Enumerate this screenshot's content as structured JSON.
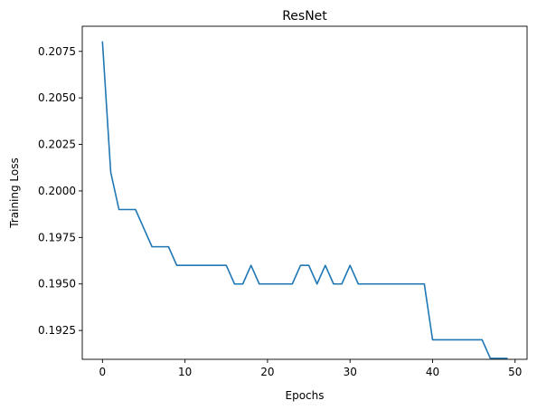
{
  "chart_data": {
    "type": "line",
    "title": "ResNet",
    "xlabel": "Epochs",
    "ylabel": "Training Loss",
    "xlim": [
      -2.45,
      51.45
    ],
    "ylim": [
      0.19095,
      0.20885
    ],
    "xticks": [
      0,
      10,
      20,
      30,
      40,
      50
    ],
    "xtick_labels": [
      "0",
      "10",
      "20",
      "30",
      "40",
      "50"
    ],
    "yticks": [
      0.1925,
      0.195,
      0.1975,
      0.2,
      0.2025,
      0.205,
      0.2075
    ],
    "ytick_labels": [
      "0.1925",
      "0.1950",
      "0.1975",
      "0.2000",
      "0.2025",
      "0.2050",
      "0.2075"
    ],
    "grid": false,
    "series": [
      {
        "color": "#1f77b4",
        "x": [
          0,
          1,
          2,
          3,
          4,
          5,
          6,
          7,
          8,
          9,
          10,
          11,
          12,
          13,
          14,
          15,
          16,
          17,
          18,
          19,
          20,
          21,
          22,
          23,
          24,
          25,
          26,
          27,
          28,
          29,
          30,
          31,
          32,
          33,
          34,
          35,
          36,
          37,
          38,
          39,
          40,
          41,
          42,
          43,
          44,
          45,
          46,
          47,
          48,
          49
        ],
        "y": [
          0.208,
          0.201,
          0.199,
          0.199,
          0.199,
          0.198,
          0.197,
          0.197,
          0.197,
          0.196,
          0.196,
          0.196,
          0.196,
          0.196,
          0.196,
          0.196,
          0.195,
          0.195,
          0.196,
          0.195,
          0.195,
          0.195,
          0.195,
          0.195,
          0.196,
          0.196,
          0.195,
          0.196,
          0.195,
          0.195,
          0.196,
          0.195,
          0.195,
          0.195,
          0.195,
          0.195,
          0.195,
          0.195,
          0.195,
          0.195,
          0.192,
          0.192,
          0.192,
          0.192,
          0.192,
          0.192,
          0.192,
          0.191,
          0.191,
          0.191
        ]
      }
    ]
  }
}
